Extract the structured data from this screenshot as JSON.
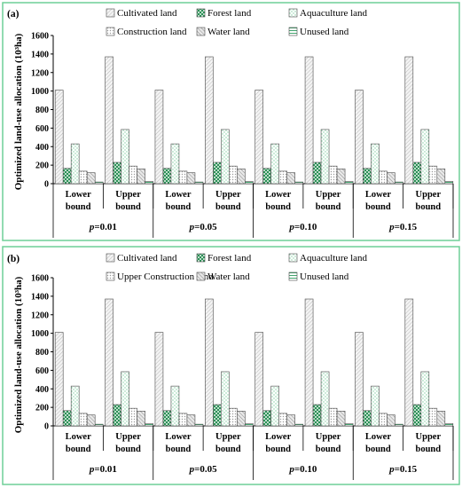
{
  "colors": {
    "panel_border": "#6fcf97",
    "bar_stroke": "#4a4a4a",
    "cultivated": "#f0f0f0",
    "forest": "#1f8a4c",
    "aquaculture": "#c6ead8",
    "construction": "#e6e6e6",
    "water": "#a0a0a0",
    "unused": "#2e9b5f"
  },
  "chart_data": [
    {
      "panel_label": "(a)",
      "type": "bar",
      "ylabel": "Optimized land-use allocation (10³ha)",
      "ylim": [
        0,
        1600
      ],
      "yticks": [
        "0",
        "200",
        "400",
        "600",
        "800",
        "1000",
        "1200",
        "1400",
        "1600"
      ],
      "legend": [
        {
          "name": "Cultivated land",
          "color_key": "cultivated"
        },
        {
          "name": "Forest land",
          "color_key": "forest"
        },
        {
          "name": "Aquaculture land",
          "color_key": "aquaculture"
        },
        {
          "name": "Construction land",
          "color_key": "construction"
        },
        {
          "name": "Water land",
          "color_key": "water"
        },
        {
          "name": "Unused land",
          "color_key": "unused"
        }
      ],
      "groups": [
        {
          "label": "p=0.01",
          "categories": [
            {
              "label": "Lower bound",
              "values": [
                1010,
                165,
                430,
                135,
                118,
                18
              ]
            },
            {
              "label": "Upper bound",
              "values": [
                1370,
                230,
                585,
                190,
                160,
                25
              ]
            }
          ]
        },
        {
          "label": "p=0.05",
          "categories": [
            {
              "label": "Lower bound",
              "values": [
                1010,
                165,
                430,
                135,
                118,
                18
              ]
            },
            {
              "label": "Upper bound",
              "values": [
                1370,
                230,
                585,
                190,
                160,
                25
              ]
            }
          ]
        },
        {
          "label": "p=0.10",
          "categories": [
            {
              "label": "Lower bound",
              "values": [
                1010,
                165,
                430,
                135,
                118,
                18
              ]
            },
            {
              "label": "Upper bound",
              "values": [
                1370,
                230,
                585,
                190,
                160,
                25
              ]
            }
          ]
        },
        {
          "label": "p=0.15",
          "categories": [
            {
              "label": "Lower bound",
              "values": [
                1010,
                165,
                430,
                135,
                118,
                18
              ]
            },
            {
              "label": "Upper bound",
              "values": [
                1370,
                230,
                585,
                190,
                160,
                25
              ]
            }
          ]
        }
      ]
    },
    {
      "panel_label": "(b)",
      "type": "bar",
      "ylabel": "Optimized land-use allocation (10³ha)",
      "ylim": [
        0,
        1600
      ],
      "yticks": [
        "0",
        "200",
        "400",
        "600",
        "800",
        "1000",
        "1200",
        "1400",
        "1600"
      ],
      "legend": [
        {
          "name": "Cultivated land",
          "color_key": "cultivated"
        },
        {
          "name": "Forest land",
          "color_key": "forest"
        },
        {
          "name": "Aquaculture land",
          "color_key": "aquaculture"
        },
        {
          "name": "Upper Construction land",
          "color_key": "construction"
        },
        {
          "name": "Water land",
          "color_key": "water"
        },
        {
          "name": "Unused land",
          "color_key": "unused"
        }
      ],
      "groups": [
        {
          "label": "p=0.01",
          "categories": [
            {
              "label": "Lower bound",
              "values": [
                1010,
                165,
                430,
                135,
                118,
                18
              ]
            },
            {
              "label": "Upper bound",
              "values": [
                1370,
                230,
                585,
                190,
                160,
                25
              ]
            }
          ]
        },
        {
          "label": "p=0.05",
          "categories": [
            {
              "label": "Lower bound",
              "values": [
                1010,
                165,
                430,
                135,
                118,
                18
              ]
            },
            {
              "label": "Upper bound",
              "values": [
                1370,
                230,
                585,
                190,
                160,
                25
              ]
            }
          ]
        },
        {
          "label": "p=0.10",
          "categories": [
            {
              "label": "Lower bound",
              "values": [
                1010,
                165,
                430,
                135,
                118,
                18
              ]
            },
            {
              "label": "Upper bound",
              "values": [
                1370,
                230,
                585,
                190,
                160,
                25
              ]
            }
          ]
        },
        {
          "label": "p=0.15",
          "categories": [
            {
              "label": "Lower bound",
              "values": [
                1010,
                165,
                430,
                135,
                118,
                18
              ]
            },
            {
              "label": "Upper bound",
              "values": [
                1370,
                230,
                585,
                190,
                160,
                25
              ]
            }
          ]
        }
      ]
    }
  ]
}
